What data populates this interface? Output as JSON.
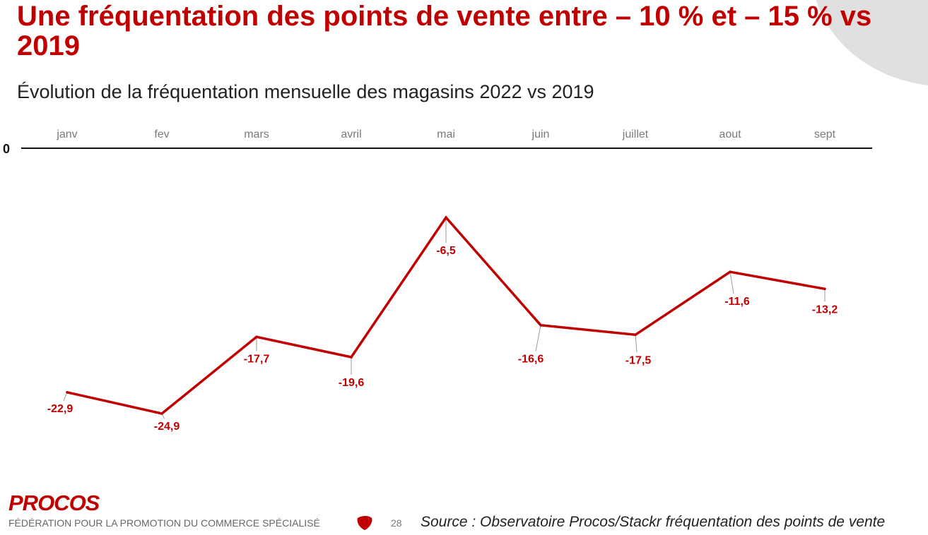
{
  "page": {
    "title": "Une fréquentation des points de vente entre – 10 % et – 15 % vs 2019",
    "subtitle": "Évolution de la fréquentation mensuelle des magasins 2022 vs 2019"
  },
  "chart_data": {
    "type": "line",
    "categories": [
      "janv",
      "fev",
      "mars",
      "avril",
      "mai",
      "juin",
      "juillet",
      "aout",
      "sept"
    ],
    "values": [
      -22.9,
      -24.9,
      -17.7,
      -19.6,
      -6.5,
      -16.6,
      -17.5,
      -11.6,
      -13.2
    ],
    "data_labels": [
      "-22,9",
      "-24,9",
      "-17,7",
      "-19,6",
      "-6,5",
      "-16,6",
      "-17,5",
      "-11,6",
      "-13,2"
    ],
    "zero_label": "0",
    "x_axis_position": "top, at zero",
    "legend": "none",
    "grid": false,
    "colors": {
      "line": "#c00000",
      "axis": "#111111",
      "labels": "#c00000"
    }
  },
  "footer": {
    "logo": "PROCOS",
    "tagline": "FÉDÉRATION POUR LA PROMOTION DU COMMERCE SPÉCIALISÉ",
    "page_number": "28",
    "source": "Source : Observatoire Procos/Stackr fréquentation des points de vente"
  },
  "colors": {
    "brand_red": "#c00000",
    "decor_grey": "#e0e0e0"
  }
}
